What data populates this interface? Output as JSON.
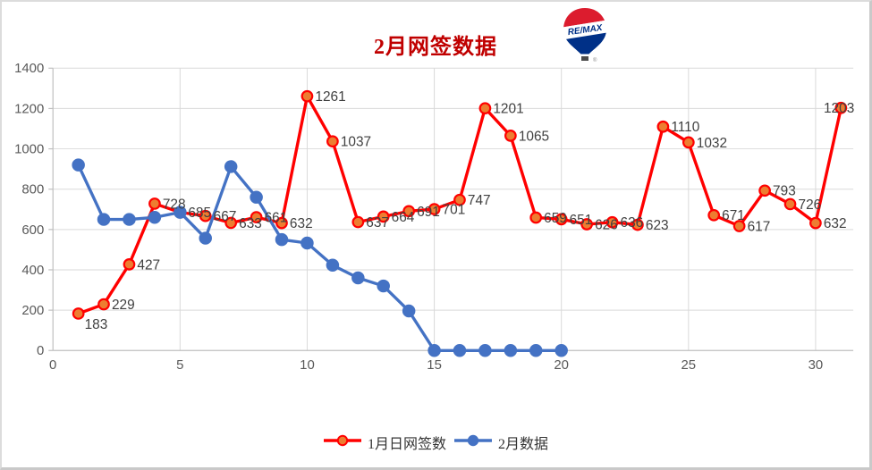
{
  "chart_data": {
    "type": "line",
    "title": "2月网签数据",
    "xlabel": "",
    "ylabel": "",
    "xlim": [
      0,
      31.5
    ],
    "ylim": [
      0,
      1400
    ],
    "xticks": [
      0,
      5,
      10,
      15,
      20,
      25,
      30
    ],
    "yticks": [
      0,
      200,
      400,
      600,
      800,
      1000,
      1200,
      1400
    ],
    "grid": true,
    "legend_position": "bottom-center",
    "series": [
      {
        "name": "1月日网签数",
        "color": "#FF0000",
        "marker_fill": "#ED7D31",
        "marker_stroke": "#FF0000",
        "data_labels": true,
        "x": [
          1,
          2,
          3,
          4,
          5,
          6,
          7,
          8,
          9,
          10,
          11,
          12,
          13,
          14,
          15,
          16,
          17,
          18,
          19,
          20,
          21,
          22,
          23,
          24,
          25,
          26,
          27,
          28,
          29,
          30,
          31
        ],
        "values": [
          183,
          229,
          427,
          728,
          685,
          667,
          633,
          661,
          632,
          1261,
          1037,
          637,
          664,
          691,
          701,
          747,
          1201,
          1065,
          659,
          651,
          626,
          636,
          623,
          1110,
          1032,
          671,
          617,
          793,
          726,
          632,
          1203
        ]
      },
      {
        "name": "2月数据",
        "color": "#4472C4",
        "marker_fill": "#4472C4",
        "marker_stroke": "#4472C4",
        "data_labels": false,
        "x": [
          1,
          2,
          3,
          4,
          5,
          6,
          7,
          8,
          9,
          10,
          11,
          12,
          13,
          14,
          15,
          16,
          17,
          18,
          19,
          20
        ],
        "values": [
          920,
          650,
          650,
          660,
          685,
          557,
          912,
          760,
          550,
          533,
          423,
          360,
          320,
          196,
          0,
          0,
          0,
          0,
          0,
          0
        ]
      }
    ]
  },
  "logo": {
    "text": "RE/MAX",
    "balloon_red": "#DC1C2E",
    "balloon_blue": "#003087",
    "basket_color": "#4a4a4a",
    "registered_mark": "®"
  },
  "styles": {
    "title_color": "#C00000",
    "grid_color": "#D9D9D9",
    "axis_color": "#BFBFBF",
    "tick_label_color": "#595959",
    "data_label_color": "#404040",
    "legend_text_color": "#333333",
    "background": "#FFFFFF"
  }
}
